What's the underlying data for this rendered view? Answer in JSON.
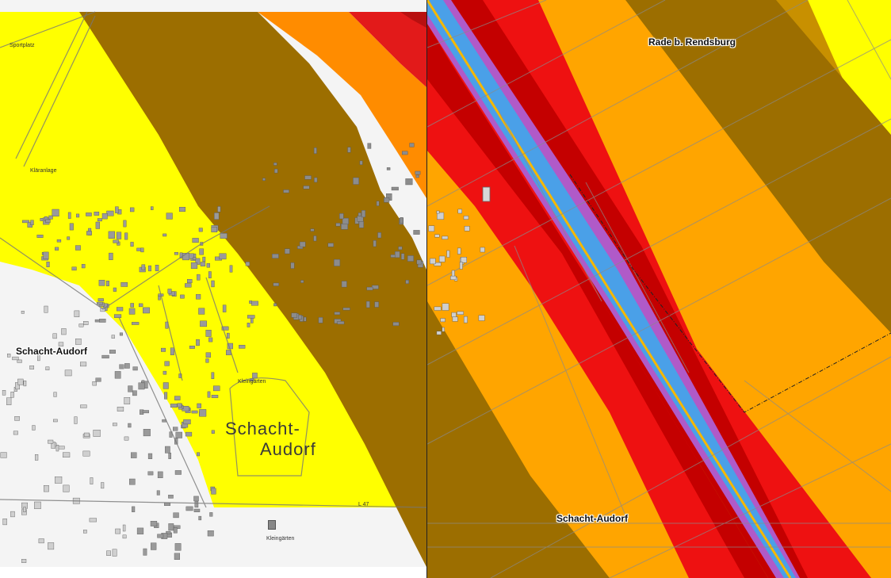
{
  "colors": {
    "zone_yellow": "#ffff00",
    "zone_brown": "#9c6e00",
    "zone_orange": "#ff8c00",
    "zone_amber": "#ffa500",
    "zone_red": "#ee1111",
    "zone_darkred": "#c80000",
    "zone_purple": "#b05ac8",
    "zone_blue": "#4aa0e8",
    "line_center": "#f5b800",
    "base_white": "#f4f4f4"
  },
  "left_map": {
    "labels": {
      "sportplatz": "Sportplatz",
      "klaeranlage": "Kläranlage",
      "schacht_audorf": "Schacht-Audorf",
      "big_line1": "Schacht-",
      "big_line2": "Audorf",
      "l47": "L 47",
      "kleingaerten_top": "Kleingärten",
      "kleingaerten_bottom": "Kleingärten"
    },
    "icons": [
      "building-icon"
    ]
  },
  "right_map": {
    "labels": {
      "rade": "Rade b. Rendsburg",
      "schacht_audorf": "Schacht-Audorf"
    }
  }
}
